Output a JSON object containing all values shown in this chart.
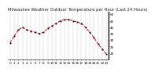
{
  "title": "Milwaukee Weather Outdoor Temperature per Hour (Last 24 Hours)",
  "hours": [
    0,
    1,
    2,
    3,
    4,
    5,
    6,
    7,
    8,
    9,
    10,
    11,
    12,
    13,
    14,
    15,
    16,
    17,
    18,
    19,
    20,
    21,
    22,
    23
  ],
  "temps": [
    28,
    33,
    38,
    40,
    38,
    37,
    36,
    35,
    36,
    39,
    41,
    43,
    45,
    46,
    46,
    45,
    44,
    43,
    40,
    36,
    32,
    27,
    23,
    19
  ],
  "line_color": "#cc0000",
  "marker_color": "#000000",
  "bg_color": "#ffffff",
  "grid_color": "#888888",
  "ylim_min": 15,
  "ylim_max": 52,
  "ytick_values": [
    20,
    25,
    30,
    35,
    40,
    45,
    50
  ],
  "ytick_labels": [
    "20",
    "25",
    "30",
    "35",
    "40",
    "45",
    "50"
  ],
  "title_fontsize": 3.8,
  "tick_fontsize": 3.0
}
